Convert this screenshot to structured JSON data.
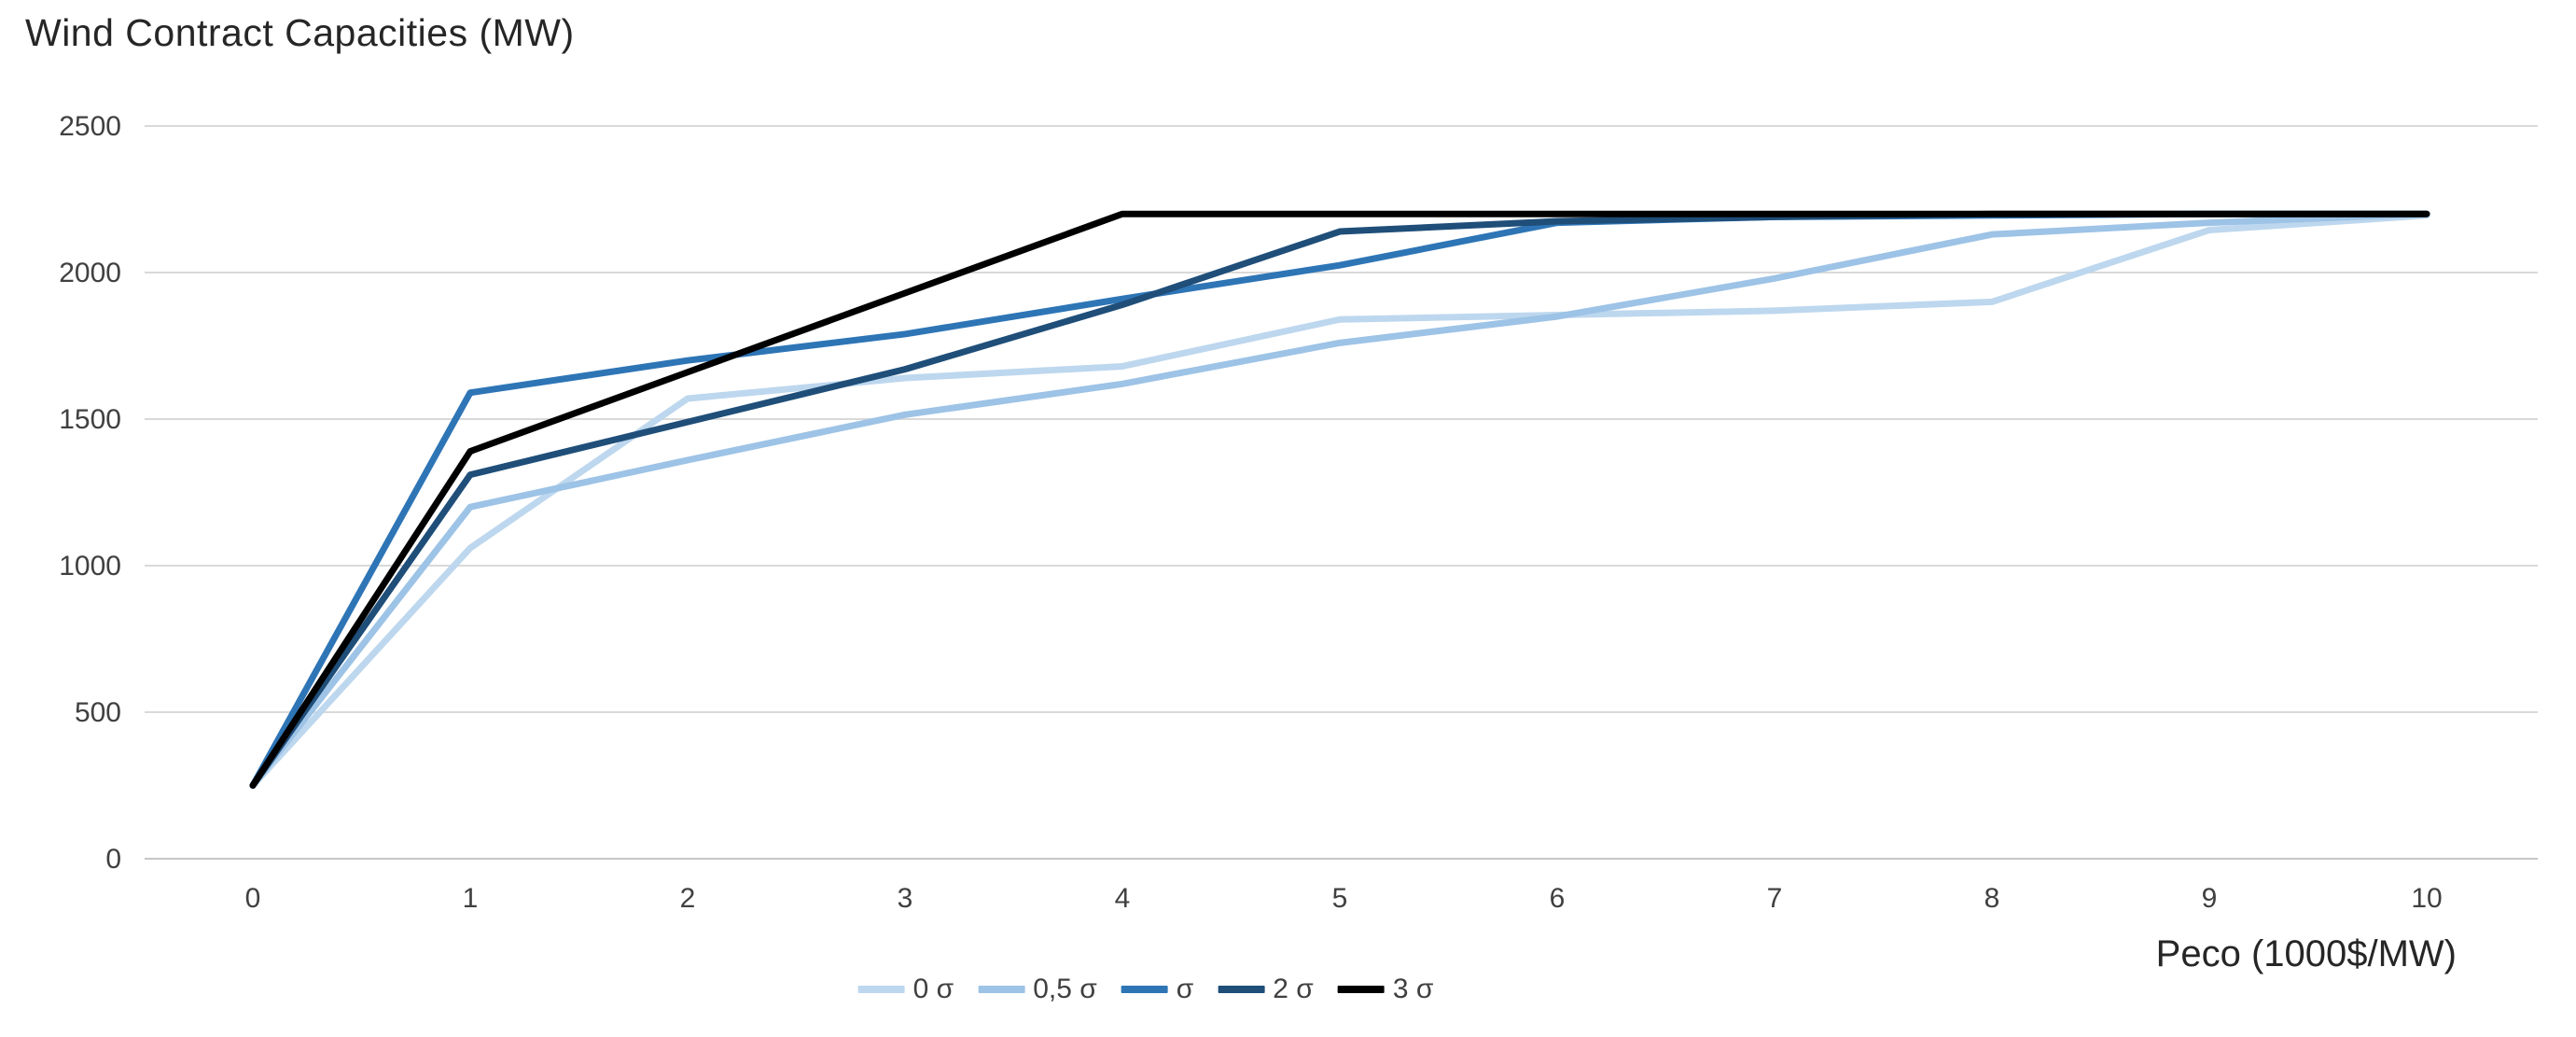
{
  "title": "Wind Contract Capacities (MW)",
  "chart_data": {
    "type": "line",
    "title": "Wind Contract Capacities (MW)",
    "x": [
      0,
      1,
      2,
      3,
      4,
      5,
      6,
      7,
      8,
      9,
      10
    ],
    "xlabel": "Peco (1000$/MW)",
    "ylabel": "",
    "ylim": [
      0,
      2500
    ],
    "yticks": [
      0,
      500,
      1000,
      1500,
      2000,
      2500
    ],
    "grid": true,
    "legend_position": "bottom",
    "series": [
      {
        "name": "0 σ",
        "color": "#bdd7ee",
        "values": [
          250,
          1060,
          1570,
          1640,
          1680,
          1840,
          1855,
          1870,
          1900,
          2145,
          2195
        ]
      },
      {
        "name": "0,5 σ",
        "color": "#9dc3e6",
        "values": [
          250,
          1200,
          1360,
          1515,
          1620,
          1760,
          1850,
          1980,
          2130,
          2170,
          2200
        ]
      },
      {
        "name": "σ",
        "color": "#2e75b6",
        "values": [
          250,
          1590,
          1700,
          1790,
          1910,
          2025,
          2170,
          2190,
          2195,
          2200,
          2200
        ]
      },
      {
        "name": "2 σ",
        "color": "#1f4e79",
        "values": [
          250,
          1310,
          1490,
          1670,
          1890,
          2140,
          2175,
          2190,
          2200,
          2200,
          2200
        ]
      },
      {
        "name": "3 σ",
        "color": "#000000",
        "values": [
          250,
          1390,
          1660,
          1930,
          2200,
          2200,
          2200,
          2200,
          2200,
          2200,
          2200
        ]
      }
    ]
  },
  "colors": {
    "background": "#ffffff",
    "grid": "#d9d9d9",
    "axis": "#c6c6c6",
    "tick_text": "#404040",
    "title_text": "#262626"
  }
}
